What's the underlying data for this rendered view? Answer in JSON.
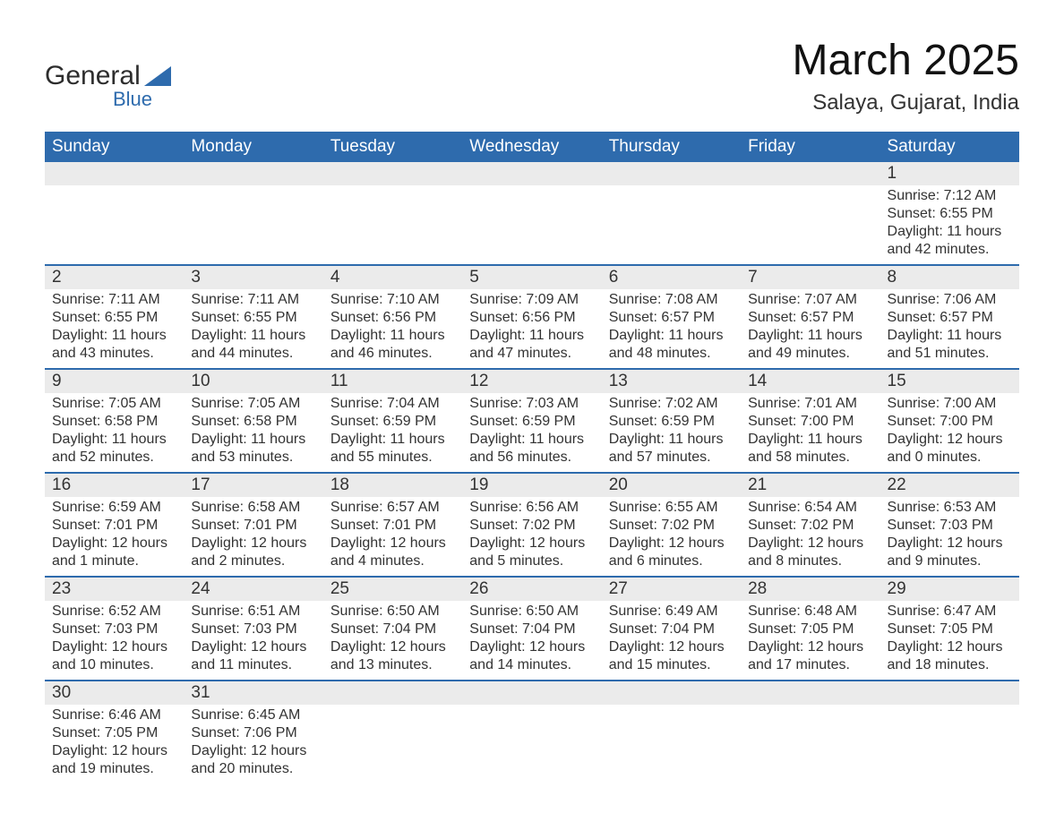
{
  "logo": {
    "text_general": "General",
    "text_blue": "Blue",
    "flag_color": "#2e6bad"
  },
  "title": "March 2025",
  "location": "Salaya, Gujarat, India",
  "colors": {
    "header_bg": "#2e6bad",
    "header_text": "#ffffff",
    "daynum_bg": "#ebebeb",
    "row_divider": "#2e6bad",
    "body_text": "#333333",
    "page_bg": "#ffffff"
  },
  "typography": {
    "title_fontsize": 48,
    "location_fontsize": 24,
    "weekday_fontsize": 19,
    "daynum_fontsize": 19,
    "detail_fontsize": 16,
    "font_family": "Arial"
  },
  "weekdays": [
    "Sunday",
    "Monday",
    "Tuesday",
    "Wednesday",
    "Thursday",
    "Friday",
    "Saturday"
  ],
  "weeks": [
    {
      "days": [
        {
          "num": "",
          "sunrise": "",
          "sunset": "",
          "daylight1": "",
          "daylight2": ""
        },
        {
          "num": "",
          "sunrise": "",
          "sunset": "",
          "daylight1": "",
          "daylight2": ""
        },
        {
          "num": "",
          "sunrise": "",
          "sunset": "",
          "daylight1": "",
          "daylight2": ""
        },
        {
          "num": "",
          "sunrise": "",
          "sunset": "",
          "daylight1": "",
          "daylight2": ""
        },
        {
          "num": "",
          "sunrise": "",
          "sunset": "",
          "daylight1": "",
          "daylight2": ""
        },
        {
          "num": "",
          "sunrise": "",
          "sunset": "",
          "daylight1": "",
          "daylight2": ""
        },
        {
          "num": "1",
          "sunrise": "Sunrise: 7:12 AM",
          "sunset": "Sunset: 6:55 PM",
          "daylight1": "Daylight: 11 hours",
          "daylight2": "and 42 minutes."
        }
      ]
    },
    {
      "days": [
        {
          "num": "2",
          "sunrise": "Sunrise: 7:11 AM",
          "sunset": "Sunset: 6:55 PM",
          "daylight1": "Daylight: 11 hours",
          "daylight2": "and 43 minutes."
        },
        {
          "num": "3",
          "sunrise": "Sunrise: 7:11 AM",
          "sunset": "Sunset: 6:55 PM",
          "daylight1": "Daylight: 11 hours",
          "daylight2": "and 44 minutes."
        },
        {
          "num": "4",
          "sunrise": "Sunrise: 7:10 AM",
          "sunset": "Sunset: 6:56 PM",
          "daylight1": "Daylight: 11 hours",
          "daylight2": "and 46 minutes."
        },
        {
          "num": "5",
          "sunrise": "Sunrise: 7:09 AM",
          "sunset": "Sunset: 6:56 PM",
          "daylight1": "Daylight: 11 hours",
          "daylight2": "and 47 minutes."
        },
        {
          "num": "6",
          "sunrise": "Sunrise: 7:08 AM",
          "sunset": "Sunset: 6:57 PM",
          "daylight1": "Daylight: 11 hours",
          "daylight2": "and 48 minutes."
        },
        {
          "num": "7",
          "sunrise": "Sunrise: 7:07 AM",
          "sunset": "Sunset: 6:57 PM",
          "daylight1": "Daylight: 11 hours",
          "daylight2": "and 49 minutes."
        },
        {
          "num": "8",
          "sunrise": "Sunrise: 7:06 AM",
          "sunset": "Sunset: 6:57 PM",
          "daylight1": "Daylight: 11 hours",
          "daylight2": "and 51 minutes."
        }
      ]
    },
    {
      "days": [
        {
          "num": "9",
          "sunrise": "Sunrise: 7:05 AM",
          "sunset": "Sunset: 6:58 PM",
          "daylight1": "Daylight: 11 hours",
          "daylight2": "and 52 minutes."
        },
        {
          "num": "10",
          "sunrise": "Sunrise: 7:05 AM",
          "sunset": "Sunset: 6:58 PM",
          "daylight1": "Daylight: 11 hours",
          "daylight2": "and 53 minutes."
        },
        {
          "num": "11",
          "sunrise": "Sunrise: 7:04 AM",
          "sunset": "Sunset: 6:59 PM",
          "daylight1": "Daylight: 11 hours",
          "daylight2": "and 55 minutes."
        },
        {
          "num": "12",
          "sunrise": "Sunrise: 7:03 AM",
          "sunset": "Sunset: 6:59 PM",
          "daylight1": "Daylight: 11 hours",
          "daylight2": "and 56 minutes."
        },
        {
          "num": "13",
          "sunrise": "Sunrise: 7:02 AM",
          "sunset": "Sunset: 6:59 PM",
          "daylight1": "Daylight: 11 hours",
          "daylight2": "and 57 minutes."
        },
        {
          "num": "14",
          "sunrise": "Sunrise: 7:01 AM",
          "sunset": "Sunset: 7:00 PM",
          "daylight1": "Daylight: 11 hours",
          "daylight2": "and 58 minutes."
        },
        {
          "num": "15",
          "sunrise": "Sunrise: 7:00 AM",
          "sunset": "Sunset: 7:00 PM",
          "daylight1": "Daylight: 12 hours",
          "daylight2": "and 0 minutes."
        }
      ]
    },
    {
      "days": [
        {
          "num": "16",
          "sunrise": "Sunrise: 6:59 AM",
          "sunset": "Sunset: 7:01 PM",
          "daylight1": "Daylight: 12 hours",
          "daylight2": "and 1 minute."
        },
        {
          "num": "17",
          "sunrise": "Sunrise: 6:58 AM",
          "sunset": "Sunset: 7:01 PM",
          "daylight1": "Daylight: 12 hours",
          "daylight2": "and 2 minutes."
        },
        {
          "num": "18",
          "sunrise": "Sunrise: 6:57 AM",
          "sunset": "Sunset: 7:01 PM",
          "daylight1": "Daylight: 12 hours",
          "daylight2": "and 4 minutes."
        },
        {
          "num": "19",
          "sunrise": "Sunrise: 6:56 AM",
          "sunset": "Sunset: 7:02 PM",
          "daylight1": "Daylight: 12 hours",
          "daylight2": "and 5 minutes."
        },
        {
          "num": "20",
          "sunrise": "Sunrise: 6:55 AM",
          "sunset": "Sunset: 7:02 PM",
          "daylight1": "Daylight: 12 hours",
          "daylight2": "and 6 minutes."
        },
        {
          "num": "21",
          "sunrise": "Sunrise: 6:54 AM",
          "sunset": "Sunset: 7:02 PM",
          "daylight1": "Daylight: 12 hours",
          "daylight2": "and 8 minutes."
        },
        {
          "num": "22",
          "sunrise": "Sunrise: 6:53 AM",
          "sunset": "Sunset: 7:03 PM",
          "daylight1": "Daylight: 12 hours",
          "daylight2": "and 9 minutes."
        }
      ]
    },
    {
      "days": [
        {
          "num": "23",
          "sunrise": "Sunrise: 6:52 AM",
          "sunset": "Sunset: 7:03 PM",
          "daylight1": "Daylight: 12 hours",
          "daylight2": "and 10 minutes."
        },
        {
          "num": "24",
          "sunrise": "Sunrise: 6:51 AM",
          "sunset": "Sunset: 7:03 PM",
          "daylight1": "Daylight: 12 hours",
          "daylight2": "and 11 minutes."
        },
        {
          "num": "25",
          "sunrise": "Sunrise: 6:50 AM",
          "sunset": "Sunset: 7:04 PM",
          "daylight1": "Daylight: 12 hours",
          "daylight2": "and 13 minutes."
        },
        {
          "num": "26",
          "sunrise": "Sunrise: 6:50 AM",
          "sunset": "Sunset: 7:04 PM",
          "daylight1": "Daylight: 12 hours",
          "daylight2": "and 14 minutes."
        },
        {
          "num": "27",
          "sunrise": "Sunrise: 6:49 AM",
          "sunset": "Sunset: 7:04 PM",
          "daylight1": "Daylight: 12 hours",
          "daylight2": "and 15 minutes."
        },
        {
          "num": "28",
          "sunrise": "Sunrise: 6:48 AM",
          "sunset": "Sunset: 7:05 PM",
          "daylight1": "Daylight: 12 hours",
          "daylight2": "and 17 minutes."
        },
        {
          "num": "29",
          "sunrise": "Sunrise: 6:47 AM",
          "sunset": "Sunset: 7:05 PM",
          "daylight1": "Daylight: 12 hours",
          "daylight2": "and 18 minutes."
        }
      ]
    },
    {
      "days": [
        {
          "num": "30",
          "sunrise": "Sunrise: 6:46 AM",
          "sunset": "Sunset: 7:05 PM",
          "daylight1": "Daylight: 12 hours",
          "daylight2": "and 19 minutes."
        },
        {
          "num": "31",
          "sunrise": "Sunrise: 6:45 AM",
          "sunset": "Sunset: 7:06 PM",
          "daylight1": "Daylight: 12 hours",
          "daylight2": "and 20 minutes."
        },
        {
          "num": "",
          "sunrise": "",
          "sunset": "",
          "daylight1": "",
          "daylight2": ""
        },
        {
          "num": "",
          "sunrise": "",
          "sunset": "",
          "daylight1": "",
          "daylight2": ""
        },
        {
          "num": "",
          "sunrise": "",
          "sunset": "",
          "daylight1": "",
          "daylight2": ""
        },
        {
          "num": "",
          "sunrise": "",
          "sunset": "",
          "daylight1": "",
          "daylight2": ""
        },
        {
          "num": "",
          "sunrise": "",
          "sunset": "",
          "daylight1": "",
          "daylight2": ""
        }
      ]
    }
  ]
}
